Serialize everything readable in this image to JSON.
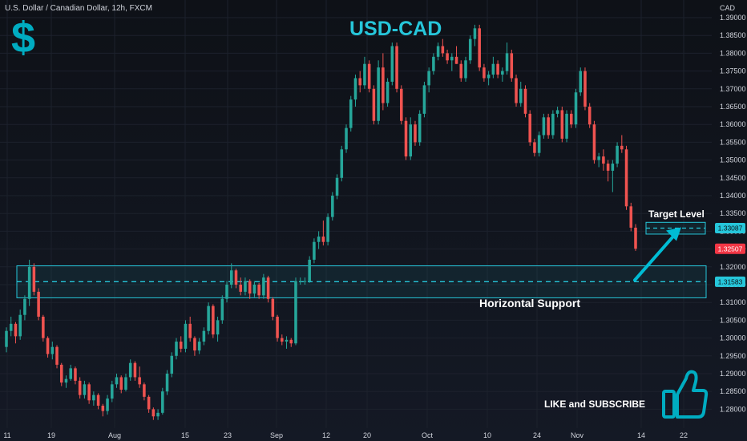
{
  "header": {
    "symbol": "U.S. Dollar / Canadian Dollar, 12h, FXCM",
    "title": "USD-CAD",
    "dollar_icon": "$"
  },
  "annotations": {
    "horizontal_support": "Horizontal Support",
    "target_level": "Target Level",
    "like_subscribe": "LIKE and SUBSCRIBE"
  },
  "price_axis": {
    "currency": "CAD",
    "ticks": [
      "1.39000",
      "1.38500",
      "1.38000",
      "1.37500",
      "1.37000",
      "1.36500",
      "1.36000",
      "1.35500",
      "1.35000",
      "1.34500",
      "1.34000",
      "1.33500",
      "1.33000",
      "1.32500",
      "1.32000",
      "1.31500",
      "1.31000",
      "1.30500",
      "1.30000",
      "1.29500",
      "1.29000",
      "1.28500",
      "1.28000"
    ]
  },
  "price_tags": [
    {
      "value": 1.33087,
      "label": "1.33087",
      "color": "#26c6da"
    },
    {
      "value": 1.32507,
      "label": "1.32507",
      "color": "#f23645"
    },
    {
      "value": 1.31583,
      "label": "1.31583",
      "color": "#26c6da"
    }
  ],
  "time_axis": {
    "ticks": [
      "11",
      "19",
      "Aug",
      "15",
      "23",
      "Sep",
      "12",
      "20",
      "Oct",
      "10",
      "24",
      "Nov",
      "14",
      "22"
    ]
  },
  "colors": {
    "up": "#26a69a",
    "down": "#ef5350",
    "accent": "#26c6da",
    "background": "#131722",
    "text": "#d1d4dc"
  },
  "icons": [
    "dollar-icon",
    "thumbs-up-icon",
    "target-arrow-icon"
  ],
  "chart_data": {
    "type": "candlestick",
    "title": "USD-CAD",
    "ylim": [
      1.277,
      1.392
    ],
    "support_zone": [
      1.3113,
      1.3203
    ],
    "support_level": 1.31583,
    "target_zone": [
      1.3292,
      1.3325
    ],
    "target_level": 1.33087,
    "last_price": 1.32507,
    "series": [
      {
        "values": [
          [
            1.2975,
            1.303,
            1.296,
            1.302
          ],
          [
            1.302,
            1.306,
            1.3005,
            1.304
          ],
          [
            1.304,
            1.3045,
            1.2985,
            1.3005
          ],
          [
            1.3005,
            1.308,
            1.2995,
            1.3065
          ],
          [
            1.3065,
            1.312,
            1.305,
            1.311
          ],
          [
            1.311,
            1.322,
            1.309,
            1.32
          ],
          [
            1.32,
            1.321,
            1.312,
            1.313
          ],
          [
            1.313,
            1.314,
            1.305,
            1.306
          ],
          [
            1.306,
            1.3065,
            1.299,
            1.3
          ],
          [
            1.3,
            1.3005,
            1.2945,
            1.2955
          ],
          [
            1.2955,
            1.299,
            1.294,
            1.2975
          ],
          [
            1.2975,
            1.298,
            1.2915,
            1.2925
          ],
          [
            1.2925,
            1.293,
            1.2865,
            1.2875
          ],
          [
            1.2875,
            1.2895,
            1.286,
            1.2885
          ],
          [
            1.2885,
            1.2925,
            1.288,
            1.2915
          ],
          [
            1.2915,
            1.292,
            1.287,
            1.288
          ],
          [
            1.288,
            1.289,
            1.283,
            1.284
          ],
          [
            1.284,
            1.288,
            1.283,
            1.287
          ],
          [
            1.287,
            1.2875,
            1.2815,
            1.2825
          ],
          [
            1.2825,
            1.285,
            1.281,
            1.284
          ],
          [
            1.284,
            1.2845,
            1.28,
            1.281
          ],
          [
            1.281,
            1.2815,
            1.278,
            1.2795
          ],
          [
            1.2795,
            1.284,
            1.2785,
            1.283
          ],
          [
            1.283,
            1.288,
            1.282,
            1.287
          ],
          [
            1.287,
            1.29,
            1.286,
            1.289
          ],
          [
            1.289,
            1.2895,
            1.2845,
            1.2855
          ],
          [
            1.2855,
            1.29,
            1.285,
            1.289
          ],
          [
            1.289,
            1.294,
            1.288,
            1.293
          ],
          [
            1.293,
            1.2935,
            1.288,
            1.289
          ],
          [
            1.289,
            1.292,
            1.286,
            1.287
          ],
          [
            1.287,
            1.2875,
            1.2825,
            1.2835
          ],
          [
            1.2835,
            1.284,
            1.279,
            1.28
          ],
          [
            1.28,
            1.2805,
            1.277,
            1.278
          ],
          [
            1.278,
            1.28,
            1.277,
            1.279
          ],
          [
            1.279,
            1.286,
            1.2785,
            1.285
          ],
          [
            1.285,
            1.291,
            1.284,
            1.29
          ],
          [
            1.29,
            1.296,
            1.289,
            1.295
          ],
          [
            1.295,
            1.3,
            1.294,
            1.299
          ],
          [
            1.299,
            1.3005,
            1.296,
            1.297
          ],
          [
            1.297,
            1.305,
            1.296,
            1.304
          ],
          [
            1.304,
            1.306,
            1.299,
            1.3
          ],
          [
            1.3,
            1.3005,
            1.295,
            1.2965
          ],
          [
            1.2965,
            1.3,
            1.2955,
            1.299
          ],
          [
            1.299,
            1.303,
            1.298,
            1.302
          ],
          [
            1.302,
            1.31,
            1.301,
            1.309
          ],
          [
            1.309,
            1.3095,
            1.3,
            1.301
          ],
          [
            1.301,
            1.306,
            1.299,
            1.305
          ],
          [
            1.305,
            1.312,
            1.304,
            1.311
          ],
          [
            1.311,
            1.316,
            1.31,
            1.315
          ],
          [
            1.315,
            1.321,
            1.314,
            1.319
          ],
          [
            1.319,
            1.3195,
            1.314,
            1.315
          ],
          [
            1.315,
            1.317,
            1.312,
            1.313
          ],
          [
            1.313,
            1.317,
            1.312,
            1.316
          ],
          [
            1.316,
            1.3165,
            1.311,
            1.3125
          ],
          [
            1.3125,
            1.316,
            1.3115,
            1.315
          ],
          [
            1.315,
            1.3155,
            1.311,
            1.312
          ],
          [
            1.312,
            1.318,
            1.311,
            1.317
          ],
          [
            1.317,
            1.3175,
            1.31,
            1.311
          ],
          [
            1.311,
            1.3115,
            1.305,
            1.306
          ],
          [
            1.306,
            1.3065,
            1.299,
            1.3
          ],
          [
            1.3,
            1.301,
            1.298,
            1.299
          ],
          [
            1.299,
            1.3005,
            1.297,
            1.2995
          ],
          [
            1.2995,
            1.3,
            1.2975,
            1.2985
          ],
          [
            1.2985,
            1.317,
            1.298,
            1.316
          ],
          [
            1.316,
            1.317,
            1.315,
            1.316
          ],
          [
            1.316,
            1.317,
            1.315,
            1.316
          ],
          [
            1.316,
            1.323,
            1.3155,
            1.322
          ],
          [
            1.322,
            1.328,
            1.321,
            1.327
          ],
          [
            1.327,
            1.33,
            1.325,
            1.3285
          ],
          [
            1.3285,
            1.333,
            1.326,
            1.327
          ],
          [
            1.327,
            1.335,
            1.326,
            1.334
          ],
          [
            1.334,
            1.341,
            1.333,
            1.34
          ],
          [
            1.34,
            1.346,
            1.339,
            1.345
          ],
          [
            1.345,
            1.354,
            1.344,
            1.353
          ],
          [
            1.353,
            1.36,
            1.352,
            1.359
          ],
          [
            1.359,
            1.368,
            1.358,
            1.367
          ],
          [
            1.367,
            1.374,
            1.365,
            1.373
          ],
          [
            1.373,
            1.375,
            1.369,
            1.371
          ],
          [
            1.371,
            1.379,
            1.37,
            1.377
          ],
          [
            1.377,
            1.378,
            1.369,
            1.37
          ],
          [
            1.37,
            1.371,
            1.36,
            1.361
          ],
          [
            1.361,
            1.378,
            1.36,
            1.376
          ],
          [
            1.376,
            1.38,
            1.364,
            1.366
          ],
          [
            1.366,
            1.373,
            1.365,
            1.372
          ],
          [
            1.372,
            1.383,
            1.371,
            1.382
          ],
          [
            1.382,
            1.383,
            1.369,
            1.37
          ],
          [
            1.37,
            1.371,
            1.36,
            1.361
          ],
          [
            1.361,
            1.362,
            1.35,
            1.351
          ],
          [
            1.351,
            1.362,
            1.35,
            1.36
          ],
          [
            1.36,
            1.361,
            1.354,
            1.355
          ],
          [
            1.355,
            1.364,
            1.354,
            1.363
          ],
          [
            1.363,
            1.372,
            1.362,
            1.371
          ],
          [
            1.371,
            1.376,
            1.369,
            1.375
          ],
          [
            1.375,
            1.38,
            1.374,
            1.379
          ],
          [
            1.379,
            1.383,
            1.378,
            1.382
          ],
          [
            1.382,
            1.384,
            1.379,
            1.38
          ],
          [
            1.38,
            1.381,
            1.377,
            1.378
          ],
          [
            1.378,
            1.38,
            1.375,
            1.379
          ],
          [
            1.379,
            1.382,
            1.377,
            1.377
          ],
          [
            1.377,
            1.378,
            1.372,
            1.373
          ],
          [
            1.373,
            1.379,
            1.372,
            1.378
          ],
          [
            1.378,
            1.385,
            1.377,
            1.384
          ],
          [
            1.384,
            1.388,
            1.382,
            1.387
          ],
          [
            1.387,
            1.388,
            1.375,
            1.376
          ],
          [
            1.376,
            1.377,
            1.372,
            1.373
          ],
          [
            1.373,
            1.375,
            1.371,
            1.374
          ],
          [
            1.374,
            1.379,
            1.373,
            1.377
          ],
          [
            1.377,
            1.378,
            1.373,
            1.374
          ],
          [
            1.374,
            1.376,
            1.372,
            1.375
          ],
          [
            1.375,
            1.383,
            1.374,
            1.38
          ],
          [
            1.38,
            1.381,
            1.372,
            1.373
          ],
          [
            1.373,
            1.374,
            1.365,
            1.366
          ],
          [
            1.366,
            1.372,
            1.365,
            1.37
          ],
          [
            1.37,
            1.371,
            1.362,
            1.363
          ],
          [
            1.363,
            1.364,
            1.354,
            1.355
          ],
          [
            1.355,
            1.356,
            1.351,
            1.352
          ],
          [
            1.352,
            1.358,
            1.351,
            1.357
          ],
          [
            1.357,
            1.363,
            1.356,
            1.362
          ],
          [
            1.362,
            1.363,
            1.356,
            1.357
          ],
          [
            1.357,
            1.364,
            1.356,
            1.363
          ],
          [
            1.363,
            1.365,
            1.362,
            1.364
          ],
          [
            1.364,
            1.365,
            1.355,
            1.356
          ],
          [
            1.356,
            1.364,
            1.355,
            1.363
          ],
          [
            1.363,
            1.364,
            1.359,
            1.36
          ],
          [
            1.36,
            1.37,
            1.359,
            1.369
          ],
          [
            1.369,
            1.376,
            1.368,
            1.375
          ],
          [
            1.375,
            1.376,
            1.364,
            1.365
          ],
          [
            1.365,
            1.366,
            1.359,
            1.36
          ],
          [
            1.36,
            1.361,
            1.349,
            1.35
          ],
          [
            1.35,
            1.352,
            1.348,
            1.351
          ],
          [
            1.351,
            1.353,
            1.347,
            1.349
          ],
          [
            1.349,
            1.35,
            1.344,
            1.347
          ],
          [
            1.347,
            1.35,
            1.341,
            1.349
          ],
          [
            1.349,
            1.355,
            1.348,
            1.354
          ],
          [
            1.354,
            1.357,
            1.352,
            1.353
          ],
          [
            1.353,
            1.354,
            1.336,
            1.337
          ],
          [
            1.337,
            1.338,
            1.33,
            1.331
          ],
          [
            1.331,
            1.332,
            1.3245,
            1.3251
          ]
        ]
      }
    ]
  }
}
